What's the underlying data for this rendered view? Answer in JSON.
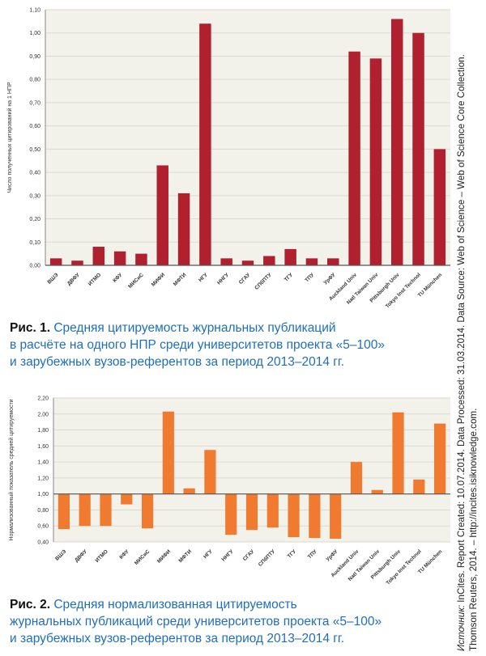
{
  "chart_data": [
    {
      "type": "bar",
      "title": "",
      "ylabel": "Число полученных цитирований на 1 НПР",
      "xlabel": "",
      "ylim": [
        0,
        1.1
      ],
      "yticks": [
        "0,00",
        "0,10",
        "0,20",
        "0,30",
        "0,40",
        "0,50",
        "0,60",
        "0,70",
        "0,80",
        "0,90",
        "1,00",
        "1,10"
      ],
      "categories": [
        "ВШЭ",
        "ДВФУ",
        "ИТМО",
        "КФУ",
        "МИСиС",
        "МИФИ",
        "МФТИ",
        "НГУ",
        "ННГУ",
        "СГАУ",
        "СПбПТУ",
        "ТГУ",
        "ТПУ",
        "УрФУ",
        "Auckland Univ",
        "Natl Taiwan Univ",
        "Pittsburgh Univ",
        "Tokyo Inst Technol",
        "TU München"
      ],
      "values": [
        0.03,
        0.02,
        0.08,
        0.06,
        0.05,
        0.43,
        0.31,
        1.04,
        0.03,
        0.02,
        0.04,
        0.07,
        0.03,
        0.03,
        0.92,
        0.89,
        1.06,
        1.0,
        0.5
      ],
      "color": "#b0202e"
    },
    {
      "type": "bar",
      "title": "",
      "ylabel": "Нормализованный показатель средней цитируемости",
      "xlabel": "",
      "ylim": [
        0.4,
        2.2
      ],
      "baseline": 1.0,
      "yticks": [
        "0,40",
        "0,60",
        "0,80",
        "1,00",
        "1,20",
        "1,40",
        "1,60",
        "1,80",
        "2,00",
        "2,20"
      ],
      "categories": [
        "ВШЭ",
        "ДВФУ",
        "ИТМО",
        "КФУ",
        "МИСиС",
        "МИФИ",
        "МФТИ",
        "НГУ",
        "ННГУ",
        "СГАУ",
        "СПбПТУ",
        "ТГУ",
        "ТПУ",
        "УрФУ",
        "Auckland Univ",
        "Natl Taiwan Univ",
        "Pittsburgh Univ",
        "Tokyo Inst Technol",
        "TU München"
      ],
      "values": [
        0.56,
        0.6,
        0.6,
        0.87,
        0.57,
        2.03,
        1.07,
        1.55,
        0.49,
        0.55,
        0.58,
        0.46,
        0.45,
        0.44,
        1.4,
        1.05,
        2.02,
        1.18,
        1.88
      ],
      "color": "#f07a30"
    }
  ],
  "captions": {
    "fig1_label": "Рис. 1.",
    "fig1_line1": " Средняя цитируемость журнальных публикаций",
    "fig1_line2": "в расчёте на одного НПР среди университетов проекта «5–100»",
    "fig1_line3": "и зарубежных вузов-референтов за период 2013–2014 гг.",
    "fig2_label": "Рис. 2.",
    "fig2_line1": " Средняя нормализованная цитируемость",
    "fig2_line2": "журнальных публикаций среди университетов проекта «5–100»",
    "fig2_line3": "и зарубежных вузов-референтов за период 2013–2014 гг."
  },
  "source_note": {
    "label": "Источник:",
    "line1": " InCites. Report Created: 10.07.2014. Data Processed: 31.03.2014. Data Source: Web of Science – Web of Science Core Collection.",
    "line2": "Thomson Reuters, 2014. – http://incites.isiknowledge.com."
  }
}
